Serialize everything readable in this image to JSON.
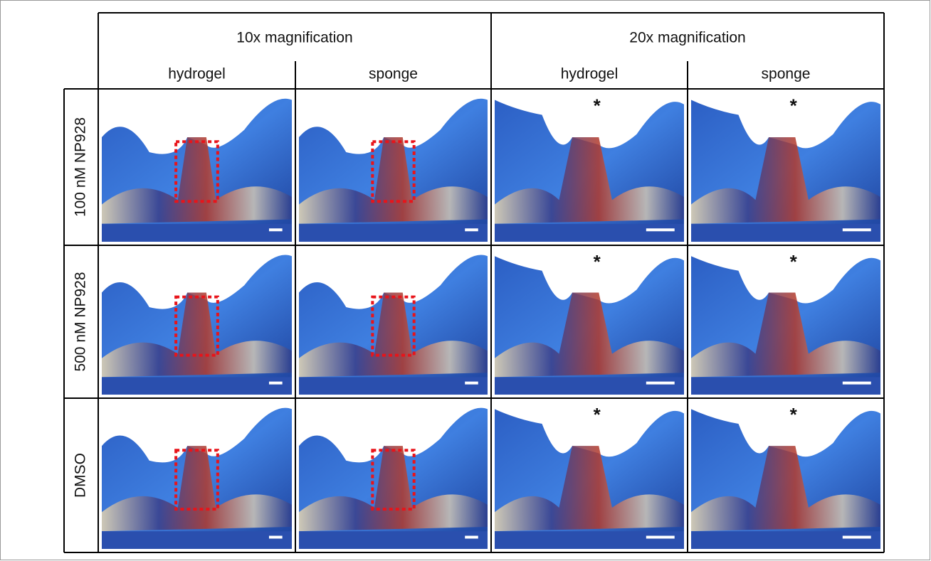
{
  "header": {
    "groups": [
      "10x magnification",
      "20x magnification"
    ],
    "subs": [
      "hydrogel",
      "sponge",
      "hydrogel",
      "sponge"
    ]
  },
  "rows": [
    {
      "label": "100 nM NP928",
      "notes": [
        "*",
        "*"
      ]
    },
    {
      "label": "500 nM NP928",
      "notes": [
        "*",
        "*"
      ]
    },
    {
      "label": "DMSO",
      "notes": [
        "*",
        "*"
      ]
    }
  ]
}
